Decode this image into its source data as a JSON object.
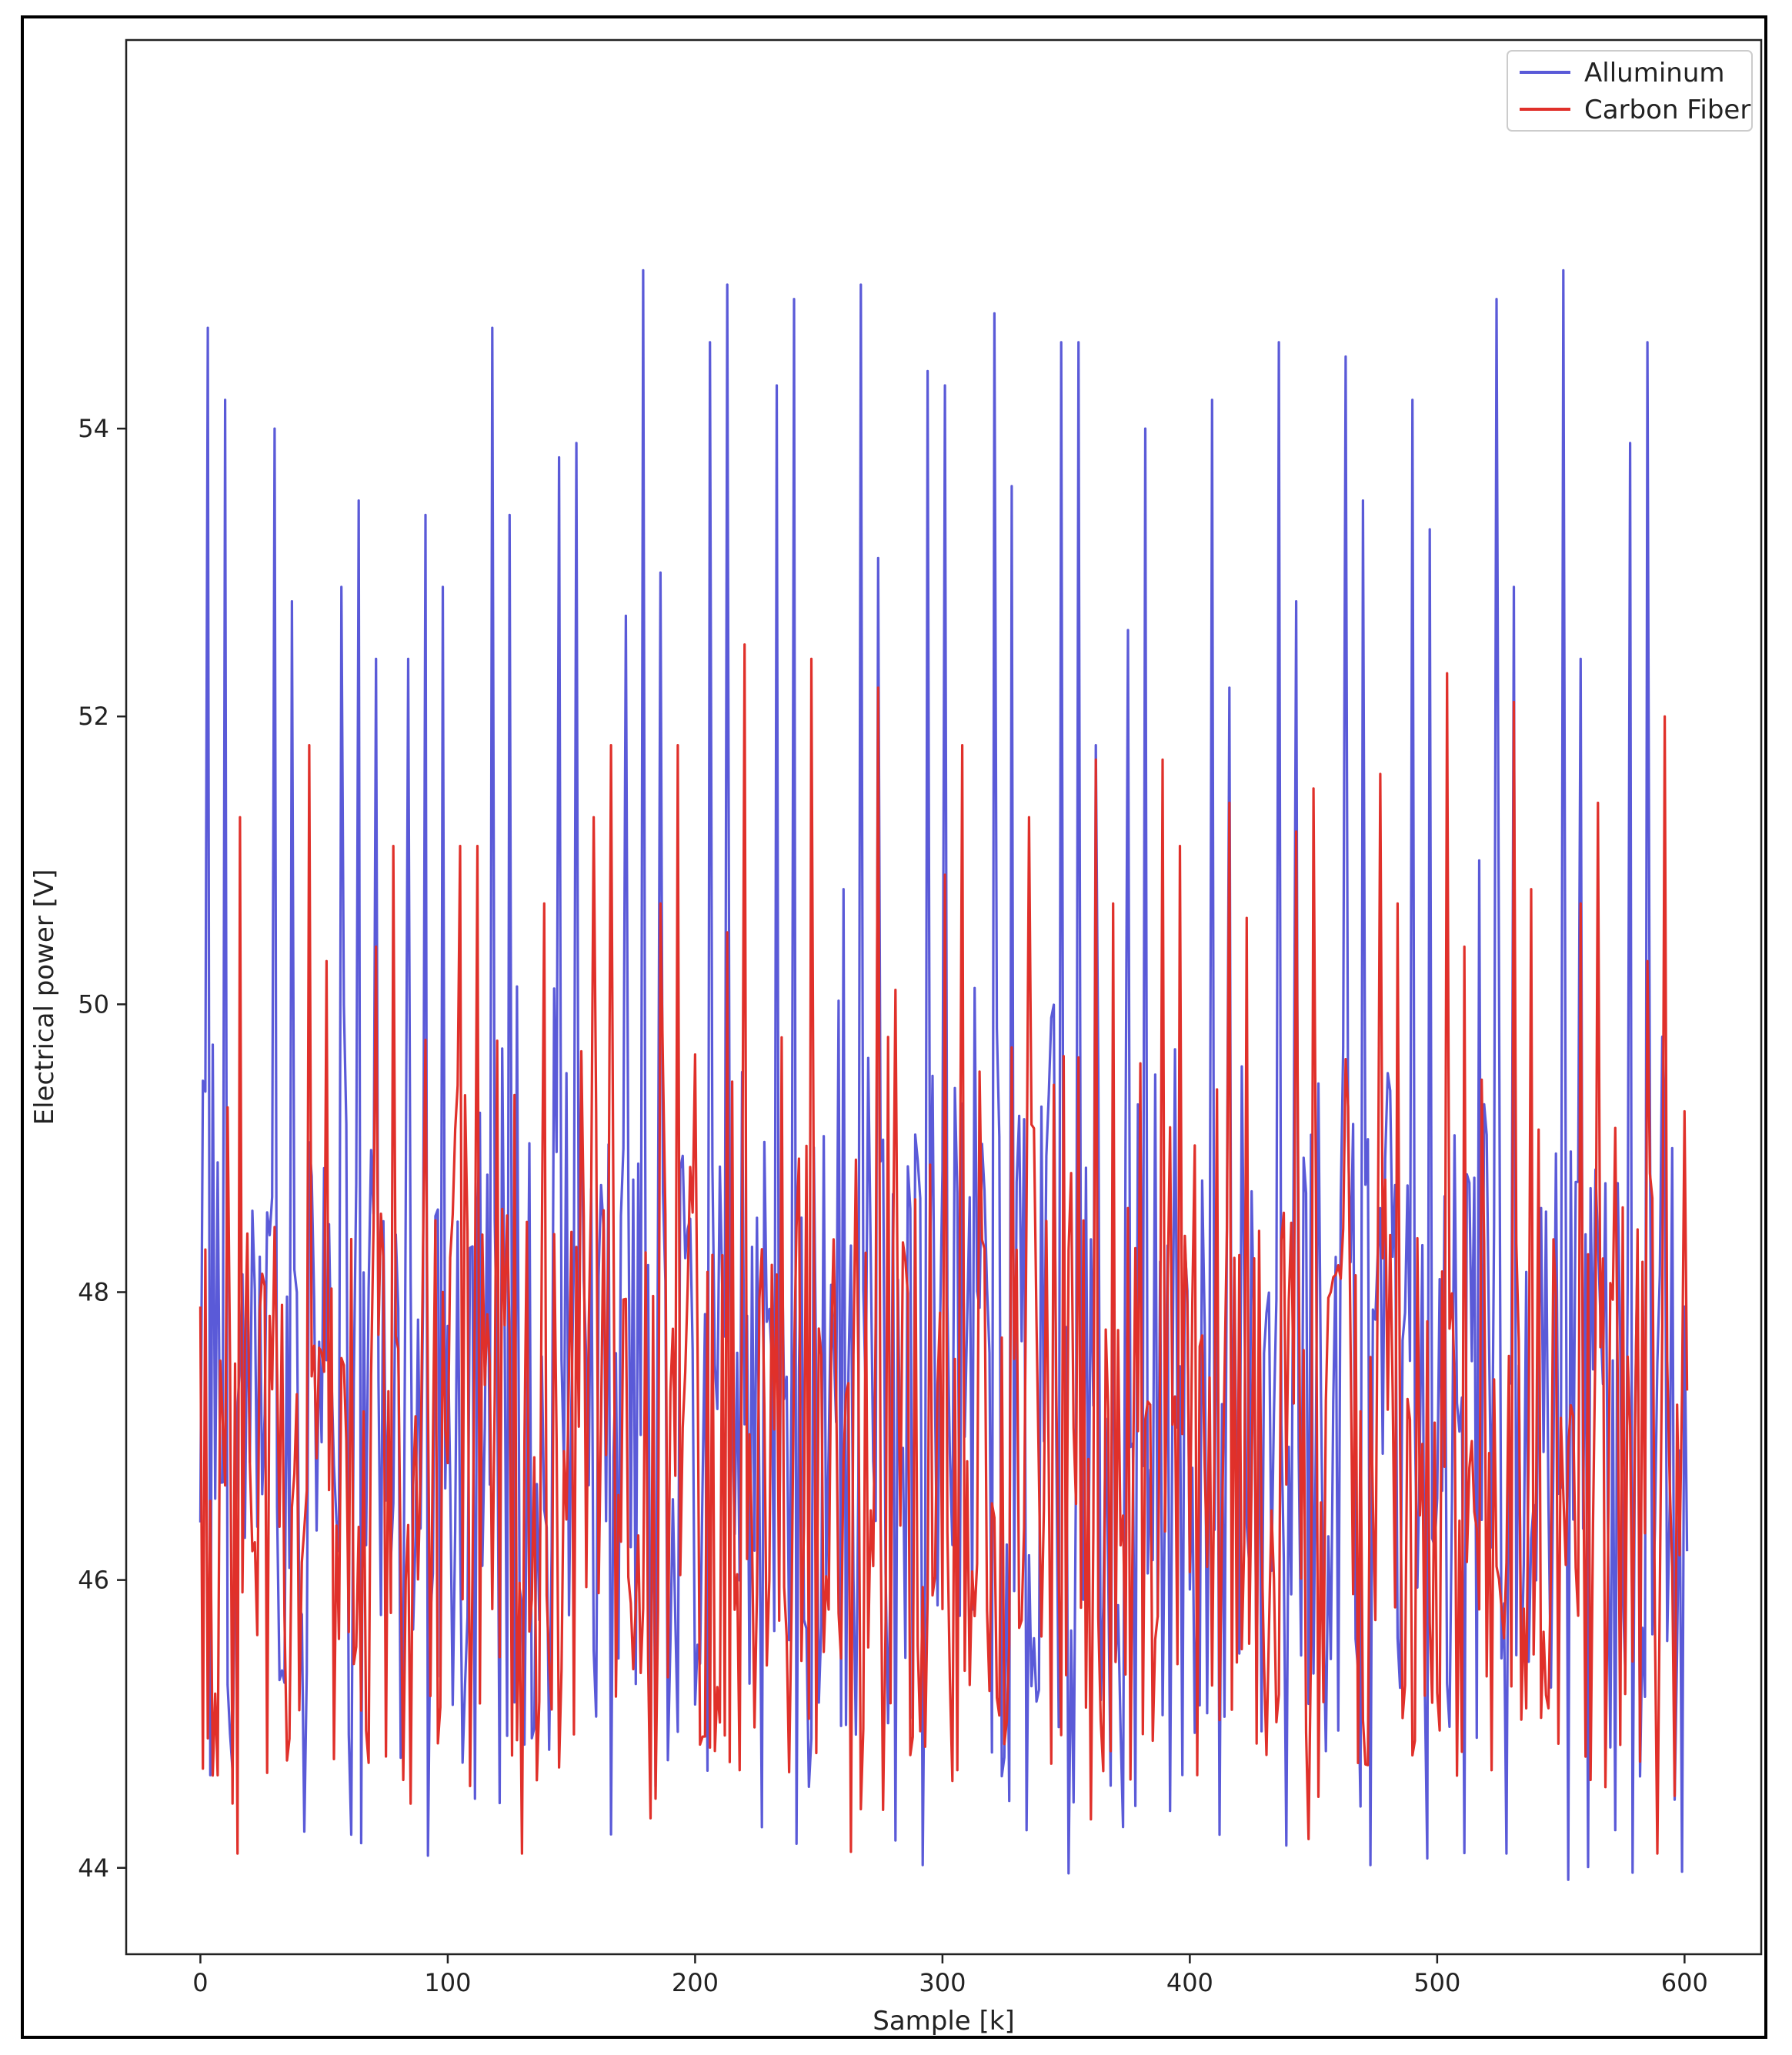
{
  "chart_data": {
    "type": "line",
    "title": "",
    "xlabel": "Sample [k]",
    "ylabel": "Electrical power [V]",
    "xlim": [
      -30,
      631
    ],
    "ylim": [
      43.4,
      56.7
    ],
    "xticks": [
      0,
      100,
      200,
      300,
      400,
      500,
      600
    ],
    "yticks": [
      44,
      46,
      48,
      50,
      52,
      54
    ],
    "grid": false,
    "legend_placement": "top-right",
    "colors": {
      "alluminum": "#5a5ad8",
      "carbon_fiber": "#e0302a",
      "axes": "#222222"
    },
    "series": [
      {
        "name": "Alluminum",
        "color": "#5a5ad8",
        "peaks": [
          {
            "x": 0,
            "y": 46.4
          },
          {
            "x": 3,
            "y": 54.7
          },
          {
            "x": 10,
            "y": 54.2
          },
          {
            "x": 30,
            "y": 54.0
          },
          {
            "x": 37,
            "y": 52.8
          },
          {
            "x": 57,
            "y": 52.9
          },
          {
            "x": 64,
            "y": 53.5
          },
          {
            "x": 71,
            "y": 52.4
          },
          {
            "x": 84,
            "y": 52.4
          },
          {
            "x": 91,
            "y": 53.4
          },
          {
            "x": 98,
            "y": 52.9
          },
          {
            "x": 118,
            "y": 54.7
          },
          {
            "x": 125,
            "y": 53.4
          },
          {
            "x": 145,
            "y": 53.8
          },
          {
            "x": 152,
            "y": 53.9
          },
          {
            "x": 172,
            "y": 52.7
          },
          {
            "x": 179,
            "y": 55.1
          },
          {
            "x": 186,
            "y": 53.0
          },
          {
            "x": 206,
            "y": 54.6
          },
          {
            "x": 213,
            "y": 55.0
          },
          {
            "x": 233,
            "y": 54.3
          },
          {
            "x": 240,
            "y": 54.9
          },
          {
            "x": 260,
            "y": 50.8
          },
          {
            "x": 267,
            "y": 55.0
          },
          {
            "x": 274,
            "y": 53.1
          },
          {
            "x": 294,
            "y": 54.4
          },
          {
            "x": 301,
            "y": 54.3
          },
          {
            "x": 321,
            "y": 54.8
          },
          {
            "x": 328,
            "y": 53.6
          },
          {
            "x": 348,
            "y": 54.6
          },
          {
            "x": 355,
            "y": 54.6
          },
          {
            "x": 362,
            "y": 51.8
          },
          {
            "x": 375,
            "y": 52.6
          },
          {
            "x": 382,
            "y": 54.0
          },
          {
            "x": 409,
            "y": 54.2
          },
          {
            "x": 416,
            "y": 52.2
          },
          {
            "x": 436,
            "y": 54.6
          },
          {
            "x": 443,
            "y": 52.8
          },
          {
            "x": 463,
            "y": 54.5
          },
          {
            "x": 470,
            "y": 53.5
          },
          {
            "x": 490,
            "y": 54.2
          },
          {
            "x": 497,
            "y": 53.3
          },
          {
            "x": 517,
            "y": 51.0
          },
          {
            "x": 524,
            "y": 54.9
          },
          {
            "x": 531,
            "y": 52.9
          },
          {
            "x": 551,
            "y": 55.1
          },
          {
            "x": 558,
            "y": 52.4
          },
          {
            "x": 578,
            "y": 53.9
          },
          {
            "x": 585,
            "y": 54.6
          },
          {
            "x": 592,
            "y": 49.3
          },
          {
            "x": 595,
            "y": 49.0
          },
          {
            "x": 598,
            "y": 46.9
          },
          {
            "x": 600,
            "y": 47.9
          },
          {
            "x": 601,
            "y": 46.2
          }
        ],
        "approx_range": [
          43.9,
          55.1
        ]
      },
      {
        "name": "Carbon Fiber",
        "color": "#e0302a",
        "peaks": [
          {
            "x": 0,
            "y": 47.9
          },
          {
            "x": 3,
            "y": 44.9
          },
          {
            "x": 16,
            "y": 51.3
          },
          {
            "x": 15,
            "y": 44.1
          },
          {
            "x": 44,
            "y": 51.8
          },
          {
            "x": 51,
            "y": 50.3
          },
          {
            "x": 71,
            "y": 50.4
          },
          {
            "x": 78,
            "y": 51.1
          },
          {
            "x": 105,
            "y": 51.1
          },
          {
            "x": 112,
            "y": 51.1
          },
          {
            "x": 130,
            "y": 44.1
          },
          {
            "x": 139,
            "y": 50.7
          },
          {
            "x": 159,
            "y": 51.3
          },
          {
            "x": 166,
            "y": 51.8
          },
          {
            "x": 186,
            "y": 50.7
          },
          {
            "x": 193,
            "y": 51.8
          },
          {
            "x": 213,
            "y": 50.5
          },
          {
            "x": 220,
            "y": 52.5
          },
          {
            "x": 247,
            "y": 52.4
          },
          {
            "x": 274,
            "y": 52.2
          },
          {
            "x": 281,
            "y": 50.1
          },
          {
            "x": 301,
            "y": 50.9
          },
          {
            "x": 308,
            "y": 51.8
          },
          {
            "x": 328,
            "y": 49.7
          },
          {
            "x": 335,
            "y": 51.3
          },
          {
            "x": 362,
            "y": 51.7
          },
          {
            "x": 369,
            "y": 50.7
          },
          {
            "x": 389,
            "y": 51.7
          },
          {
            "x": 396,
            "y": 51.1
          },
          {
            "x": 416,
            "y": 51.4
          },
          {
            "x": 423,
            "y": 50.6
          },
          {
            "x": 443,
            "y": 51.2
          },
          {
            "x": 450,
            "y": 51.5
          },
          {
            "x": 448,
            "y": 44.2
          },
          {
            "x": 477,
            "y": 51.6
          },
          {
            "x": 484,
            "y": 50.7
          },
          {
            "x": 504,
            "y": 52.3
          },
          {
            "x": 511,
            "y": 50.4
          },
          {
            "x": 531,
            "y": 52.1
          },
          {
            "x": 538,
            "y": 50.8
          },
          {
            "x": 558,
            "y": 50.7
          },
          {
            "x": 565,
            "y": 51.4
          },
          {
            "x": 585,
            "y": 50.3
          },
          {
            "x": 592,
            "y": 52.0
          },
          {
            "x": 589,
            "y": 44.1
          },
          {
            "x": 596,
            "y": 44.5
          }
        ],
        "approx_range": [
          44.1,
          52.5
        ]
      }
    ]
  }
}
